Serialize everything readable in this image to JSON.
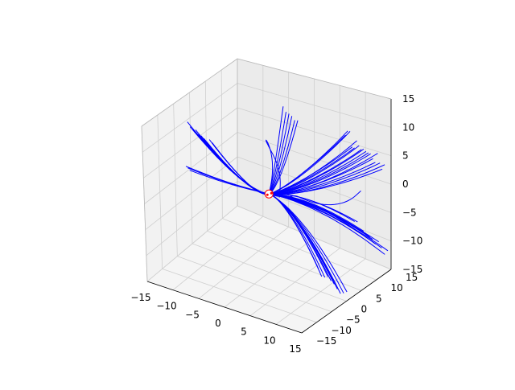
{
  "chart_data": {
    "type": "line3d",
    "title": "",
    "xlabel": "",
    "ylabel": "",
    "zlabel": "",
    "xlim": [
      -15,
      15
    ],
    "ylim": [
      -15,
      15
    ],
    "zlim": [
      -15,
      15
    ],
    "x_ticks": [
      "−15",
      "−10",
      "−5",
      "0",
      "5",
      "10",
      "15"
    ],
    "y_ticks": [
      "−15",
      "−10",
      "−5",
      "0",
      "5",
      "10",
      "15"
    ],
    "z_ticks": [
      "−15",
      "−10",
      "−5",
      "0",
      "5",
      "10",
      "15"
    ],
    "grid": true,
    "line_color": "#0000ff",
    "marker_color": "#ff0000",
    "origin": [
      0,
      0,
      0
    ],
    "bundles": [
      {
        "name": "",
        "direction": [
          -15,
          -1,
          0.5
        ],
        "count": 3,
        "spread": 0.4
      },
      {
        "name": "",
        "direction": [
          -6,
          -12,
          15
        ],
        "count": 10,
        "spread": 2.5
      },
      {
        "name": "",
        "direction": [
          3,
          2,
          15
        ],
        "count": 6,
        "spread": 1.5
      },
      {
        "name": "",
        "direction": [
          15,
          6,
          10
        ],
        "count": 18,
        "spread": 4.0
      },
      {
        "name": "",
        "direction": [
          14,
          10,
          -8
        ],
        "count": 12,
        "spread": 3.5
      },
      {
        "name": "",
        "direction": [
          10,
          4,
          -15
        ],
        "count": 10,
        "spread": 3.0
      }
    ],
    "loops": [
      {
        "name": "",
        "center": [
          2,
          0,
          10
        ],
        "radius": 3
      },
      {
        "name": "",
        "center": [
          12,
          10,
          -2
        ],
        "radius": 4
      }
    ]
  }
}
